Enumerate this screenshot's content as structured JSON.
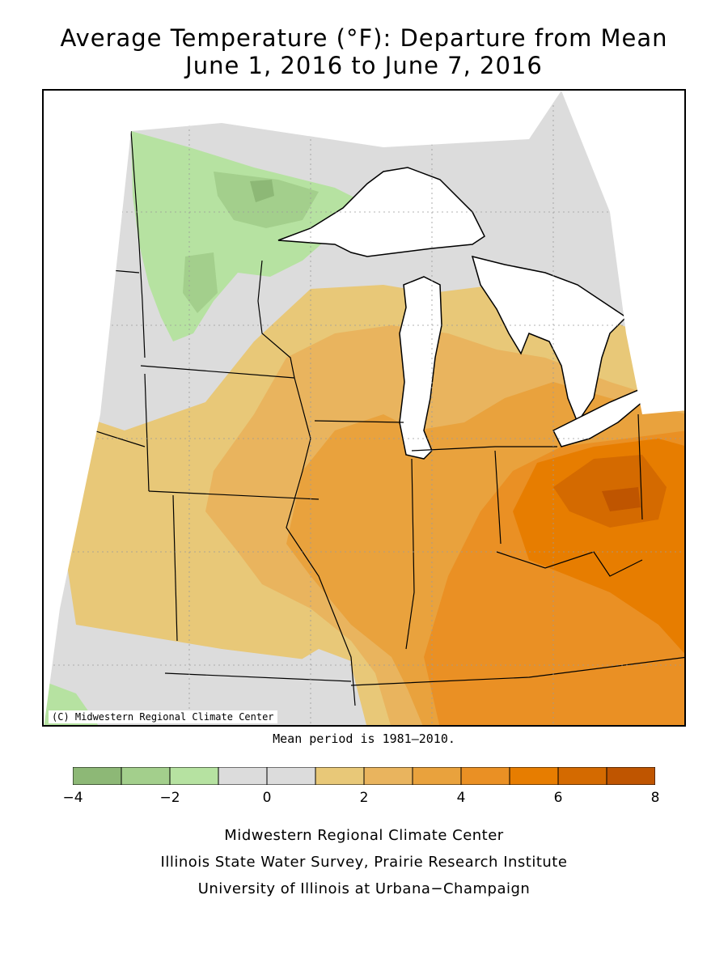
{
  "title_line1": "Average Temperature (°F): Departure from Mean",
  "title_line2": "June 1, 2016 to June 7, 2016",
  "copyright": "(C) Midwestern Regional Climate Center",
  "mean_note": "Mean period is 1981–2010.",
  "legend": {
    "bins": [
      {
        "from": -4,
        "to": -3,
        "color": "#8db876"
      },
      {
        "from": -3,
        "to": -2,
        "color": "#a3cf8c"
      },
      {
        "from": -2,
        "to": -1,
        "color": "#b6e2a1"
      },
      {
        "from": -1,
        "to": 0,
        "color": "#dcdcdc"
      },
      {
        "from": 0,
        "to": 1,
        "color": "#dcdcdc"
      },
      {
        "from": 1,
        "to": 2,
        "color": "#e8c878"
      },
      {
        "from": 2,
        "to": 3,
        "color": "#e9b45e"
      },
      {
        "from": 3,
        "to": 4,
        "color": "#e9a23d"
      },
      {
        "from": 4,
        "to": 5,
        "color": "#ea9024"
      },
      {
        "from": 5,
        "to": 6,
        "color": "#e77d00"
      },
      {
        "from": 6,
        "to": 7,
        "color": "#d46a00"
      },
      {
        "from": 7,
        "to": 8,
        "color": "#bf5500"
      }
    ],
    "tick_labels": [
      "−4",
      "−2",
      "0",
      "2",
      "4",
      "6",
      "8"
    ]
  },
  "footer": {
    "line1": "Midwestern Regional Climate Center",
    "line2": "Illinois State Water Survey, Prairie Research Institute",
    "line3": "University of Illinois at Urbana−Champaign"
  }
}
